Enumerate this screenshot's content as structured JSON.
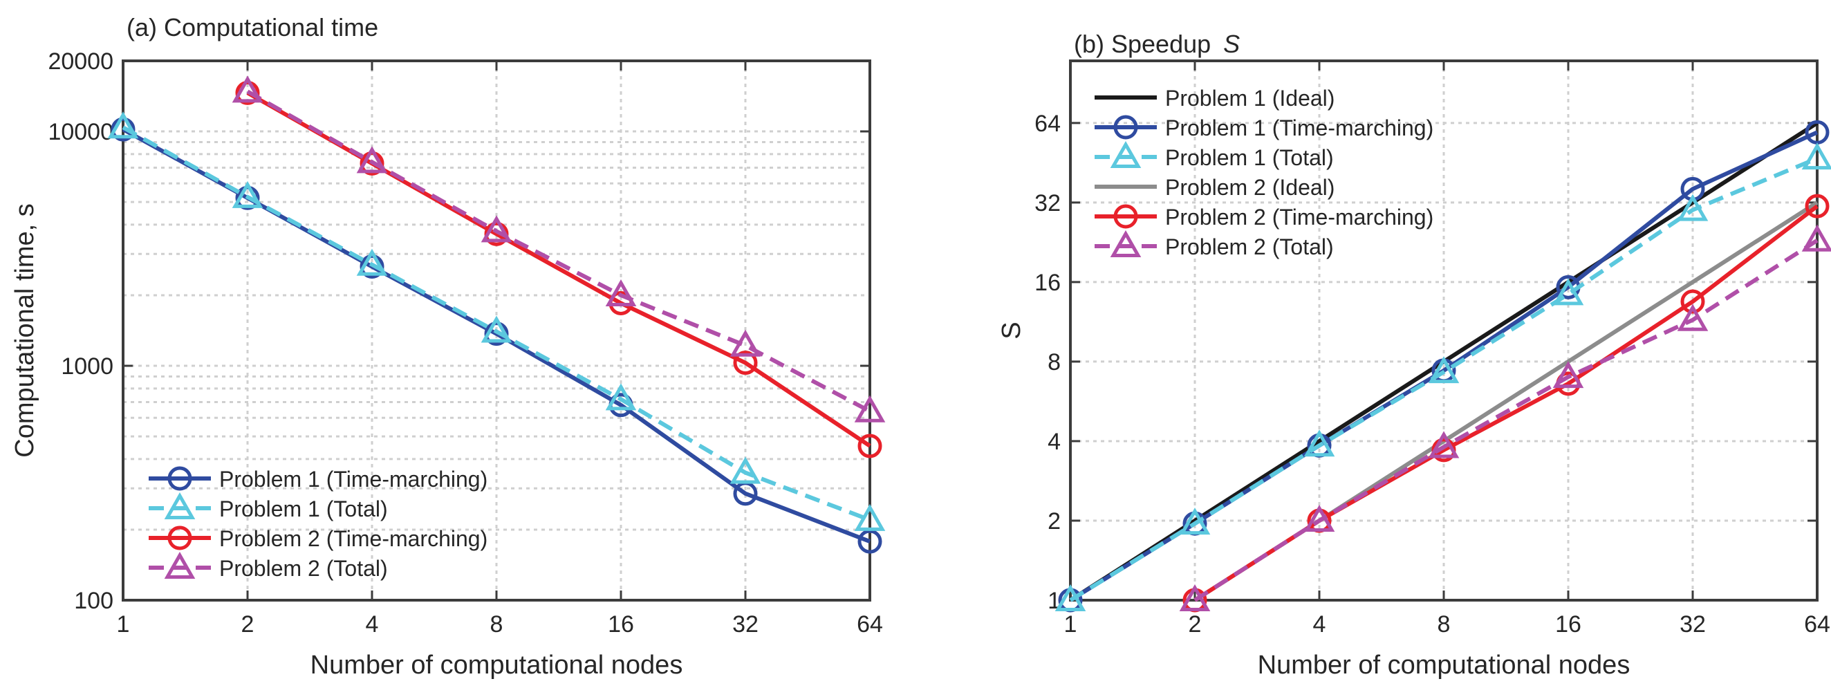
{
  "chart_data": [
    {
      "id": "a",
      "type": "line",
      "title": "(a) Computational time",
      "xlabel": "Number of computational nodes",
      "ylabel": "Computational time, s",
      "xscale": "log2",
      "yscale": "log10",
      "xlim": [
        1,
        64
      ],
      "ylim": [
        100,
        20000
      ],
      "xticks": [
        1,
        2,
        4,
        8,
        16,
        32,
        64
      ],
      "xtick_labels": [
        "1",
        "2",
        "4",
        "8",
        "16",
        "32",
        "64"
      ],
      "yticks": [
        100,
        1000,
        10000,
        20000
      ],
      "ytick_labels": [
        "100",
        "1000",
        "10000",
        "20000"
      ],
      "grid": true,
      "legend_location": "bottom-left",
      "series": [
        {
          "name": "Problem 1 (Time-marching)",
          "color": "#2F4BA0",
          "dash": "solid",
          "marker": "circle",
          "x": [
            1,
            2,
            4,
            8,
            16,
            32,
            64
          ],
          "y": [
            10200,
            5200,
            2650,
            1370,
            680,
            285,
            178
          ]
        },
        {
          "name": "Problem 1 (Total)",
          "color": "#5BC8DE",
          "dash": "dashed",
          "marker": "triangle",
          "x": [
            1,
            2,
            4,
            8,
            16,
            32,
            64
          ],
          "y": [
            10400,
            5250,
            2700,
            1400,
            720,
            350,
            220
          ]
        },
        {
          "name": "Problem 2 (Time-marching)",
          "color": "#E8212A",
          "dash": "solid",
          "marker": "circle",
          "x": [
            2,
            4,
            8,
            16,
            32,
            64
          ],
          "y": [
            14600,
            7300,
            3650,
            1850,
            1030,
            455
          ]
        },
        {
          "name": "Problem 2 (Total)",
          "color": "#B04FA8",
          "dash": "dashed",
          "marker": "triangle",
          "x": [
            2,
            4,
            8,
            16,
            32,
            64
          ],
          "y": [
            14800,
            7400,
            3750,
            2000,
            1220,
            640
          ]
        }
      ]
    },
    {
      "id": "b",
      "type": "line",
      "title": "(b) Speedup",
      "title_symbol": "S",
      "xlabel": "Number of computational nodes",
      "ylabel": "S",
      "xscale": "log2",
      "yscale": "log2",
      "xlim": [
        1,
        64
      ],
      "ylim": [
        1,
        110
      ],
      "xticks": [
        1,
        2,
        4,
        8,
        16,
        32,
        64
      ],
      "xtick_labels": [
        "1",
        "2",
        "4",
        "8",
        "16",
        "32",
        "64"
      ],
      "yticks": [
        1,
        2,
        4,
        8,
        16,
        32,
        64
      ],
      "ytick_labels": [
        "1",
        "2",
        "4",
        "8",
        "16",
        "32",
        "64"
      ],
      "grid": true,
      "legend_location": "top-left",
      "series": [
        {
          "name": "Problem 1 (Ideal)",
          "color": "#1A1A1A",
          "dash": "solid",
          "marker": "none",
          "x": [
            1,
            64
          ],
          "y": [
            1,
            64
          ]
        },
        {
          "name": "Problem 1 (Time-marching)",
          "color": "#2F4BA0",
          "dash": "solid",
          "marker": "circle",
          "x": [
            1,
            2,
            4,
            8,
            16,
            32,
            64
          ],
          "y": [
            1,
            1.95,
            3.85,
            7.4,
            15.3,
            36,
            59
          ]
        },
        {
          "name": "Problem 1 (Total)",
          "color": "#5BC8DE",
          "dash": "dashed",
          "marker": "triangle",
          "x": [
            1,
            2,
            4,
            8,
            16,
            32,
            64
          ],
          "y": [
            1,
            1.95,
            3.85,
            7.3,
            14.4,
            30,
            47
          ]
        },
        {
          "name": "Problem 2 (Ideal)",
          "color": "#8C8C8C",
          "dash": "solid",
          "marker": "none",
          "x": [
            2,
            64
          ],
          "y": [
            1,
            32
          ]
        },
        {
          "name": "Problem 2 (Time-marching)",
          "color": "#E8212A",
          "dash": "solid",
          "marker": "circle",
          "x": [
            2,
            4,
            8,
            16,
            32,
            64
          ],
          "y": [
            1,
            2,
            3.7,
            6.6,
            13.5,
            31
          ]
        },
        {
          "name": "Problem 2 (Total)",
          "color": "#B04FA8",
          "dash": "dashed",
          "marker": "triangle",
          "x": [
            2,
            4,
            8,
            16,
            32,
            64
          ],
          "y": [
            1,
            2,
            3.8,
            7,
            11.5,
            23
          ]
        }
      ]
    }
  ]
}
